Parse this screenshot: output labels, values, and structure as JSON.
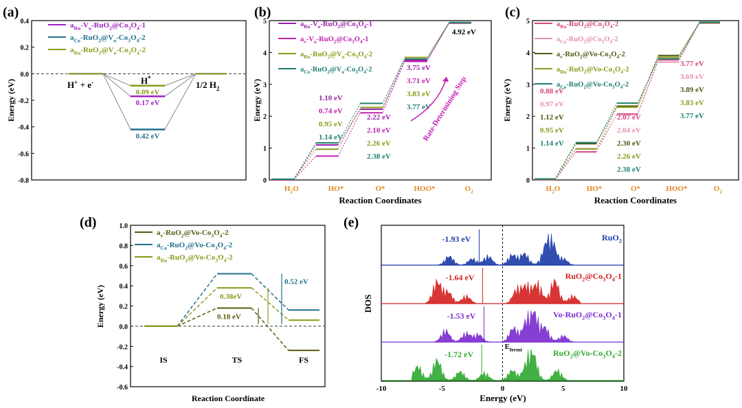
{
  "chart_data": [
    {
      "panel": "(a)",
      "type": "line",
      "ylabel": "Energy (eV)",
      "ylim": [
        -0.8,
        0.4
      ],
      "yticks": [
        0.4,
        0.2,
        0.0,
        -0.2,
        -0.4,
        -0.6,
        -0.8
      ],
      "states": [
        "H⁺ + e⁻",
        "H*",
        "1/2 H₂"
      ],
      "state_labels": {
        "left": "H",
        "left_super": "+",
        "left_rest": " + e",
        "left_super2": "-",
        "mid": "H",
        "mid_super": "*",
        "right": "1/2 H",
        "right_sub": "2"
      },
      "legend_position": "top-left",
      "series": [
        {
          "name": "a_Ru-V_o-RuO2@Co3O4-1",
          "legend": [
            "a",
            "Ru",
            "-V",
            "o",
            "-RuO",
            "2",
            "@Co",
            "3",
            "O",
            "4",
            "-1"
          ],
          "color": "#a020c8",
          "values": [
            0,
            -0.17,
            0
          ],
          "label": "0.17 eV"
        },
        {
          "name": "a_Co-RuO2@V_o-Co3O4-2",
          "legend": [
            "a",
            "Co",
            "-RuO",
            "2",
            "@V",
            "o",
            "-Co",
            "3",
            "O",
            "4",
            "-2"
          ],
          "color": "#1f6f8b",
          "values": [
            0,
            -0.42,
            0
          ],
          "label": "0.42 eV"
        },
        {
          "name": "a_Ru-RuO2@V_o-Co3O4-2",
          "legend": [
            "a",
            "Ru",
            "-RuO",
            "2",
            "@V",
            "o",
            "-Co",
            "3",
            "O",
            "4",
            "-2"
          ],
          "color": "#8a9a1a",
          "values": [
            0,
            -0.09,
            0
          ],
          "label": "0.09 eV"
        }
      ]
    },
    {
      "panel": "(b)",
      "type": "line",
      "xlabel": "Reaction Coordinates",
      "ylabel": "Energy (eV)",
      "ylim": [
        0,
        5
      ],
      "yticks": [
        0,
        1,
        2,
        3,
        4,
        5
      ],
      "categories": [
        "H2O",
        "HO*",
        "O*",
        "HOO*",
        "O2"
      ],
      "category_labels": [
        [
          "H",
          "2",
          "O"
        ],
        [
          "HO*"
        ],
        [
          "O*"
        ],
        [
          "HOO*"
        ],
        [
          "O",
          "2"
        ]
      ],
      "legend_position": "top-left",
      "series": [
        {
          "name": "a_Ru-V_o-RuO2@Co3O4-1",
          "legend": [
            "a",
            "Ru",
            "-V",
            "o",
            "-RuO",
            "2",
            "@Co",
            "3",
            "O",
            "4",
            "-1"
          ],
          "color": "#9b1fa8",
          "values": [
            0,
            1.1,
            2.22,
            3.75,
            4.92
          ]
        },
        {
          "name": "a_v-V_o-RuO2@Co3O4-1",
          "legend": [
            "a",
            "v",
            "-V",
            "o",
            "-RuO",
            "2",
            "@Co",
            "3",
            "O",
            "4",
            "-1"
          ],
          "color": "#c21fb4",
          "values": [
            0,
            0.74,
            2.1,
            3.71,
            4.92
          ]
        },
        {
          "name": "a_Ru-RuO2@V_o-Co3O4-2",
          "legend": [
            "a",
            "Ru",
            "-RuO",
            "2",
            "@V",
            "o",
            "-Co",
            "3",
            "O",
            "4",
            "-2"
          ],
          "color": "#8a9a1a",
          "values": [
            0,
            0.95,
            2.26,
            3.83,
            4.92
          ]
        },
        {
          "name": "a_Co-RuO2@V_o-Co3O4-2",
          "legend": [
            "a",
            "Co",
            "-RuO",
            "2",
            "@V",
            "o",
            "-Co",
            "3",
            "O",
            "4",
            "-2"
          ],
          "color": "#1f7f73",
          "values": [
            0,
            1.14,
            2.38,
            3.77,
            4.92
          ]
        }
      ],
      "annotations": {
        "step1": [
          "1.10 eV",
          "0.74 eV",
          "0.95 eV",
          "1.14 eV"
        ],
        "step2": [
          "2.22 eV",
          "2.10 eV",
          "2.26 eV",
          "2.38 eV"
        ],
        "step3": [
          "3.75 eV",
          "3.71 eV",
          "3.83 eV",
          "3.77 eV"
        ],
        "top": "4.92 eV",
        "rds": "Rate-Determining Step"
      }
    },
    {
      "panel": "(c)",
      "type": "line",
      "xlabel": "Reaction Coordinates",
      "ylabel": "Energy (eV)",
      "ylim": [
        0,
        5
      ],
      "yticks": [
        0,
        1,
        2,
        3,
        4,
        5
      ],
      "categories": [
        "H2O",
        "HO*",
        "O*",
        "HOO*",
        "O2"
      ],
      "category_labels": [
        [
          "H",
          "2",
          "O"
        ],
        [
          "HO*"
        ],
        [
          "O*"
        ],
        [
          "HOO*"
        ],
        [
          "O",
          "2"
        ]
      ],
      "legend_position": "top-left",
      "series": [
        {
          "name": "a_Ru-RuO2@Co3O4-2",
          "legend": [
            "a",
            "Ru",
            "-RuO",
            "2",
            "@Co",
            "3",
            "O",
            "4",
            "-2"
          ],
          "color": "#d4447c",
          "values": [
            0,
            0.88,
            2.07,
            3.77,
            4.92
          ]
        },
        {
          "name": "a_Co-RuO2@Co3O4-2",
          "legend": [
            "a",
            "Co",
            "-RuO",
            "2",
            "@Co",
            "3",
            "O",
            "4",
            "-2"
          ],
          "color": "#e58fb6",
          "values": [
            0,
            0.97,
            2.04,
            3.69,
            4.92
          ]
        },
        {
          "name": "a_v-RuO2@Vo-Co3O4-2",
          "legend": [
            "a",
            "v",
            "-RuO",
            "2",
            "@Vo-Co",
            "3",
            "O",
            "4",
            "-2"
          ],
          "color": "#4b5a12",
          "values": [
            0,
            1.12,
            2.3,
            3.89,
            4.92
          ]
        },
        {
          "name": "a_Ru-RuO2@Vo-Co3O4-2",
          "legend": [
            "a",
            "Ru",
            "-RuO",
            "2",
            "@Vo-Co",
            "3",
            "O",
            "4",
            "-2"
          ],
          "color": "#8a9a1a",
          "values": [
            0,
            0.95,
            2.26,
            3.83,
            4.92
          ]
        },
        {
          "name": "a_Co-RuO2@Vo-Co3O4-2",
          "legend": [
            "a",
            "Co",
            "-RuO",
            "2",
            "@Vo-Co",
            "3",
            "O",
            "4",
            "-2"
          ],
          "color": "#1f7f73",
          "values": [
            0,
            1.14,
            2.38,
            3.77,
            4.92
          ]
        }
      ],
      "annotations": {
        "step1": [
          "0.88 eV",
          "0.97 eV",
          "1.12 eV",
          "0.95 eV",
          "1.14 eV"
        ],
        "step2": [
          "2.07 eV",
          "2.04 eV",
          "2.30 eV",
          "2.26 eV",
          "2.38 eV"
        ],
        "step3": [
          "3.77 eV",
          "3.69 eV",
          "3.89 eV",
          "3.83 eV",
          "3.77 eV"
        ]
      }
    },
    {
      "panel": "(d)",
      "type": "line",
      "xlabel": "Reaction Coordinate",
      "ylabel": "Energy (eV)",
      "ylim": [
        -0.6,
        1.0
      ],
      "yticks": [
        1.0,
        0.8,
        0.6,
        0.4,
        0.2,
        0.0,
        -0.2,
        -0.4,
        -0.6
      ],
      "categories": [
        "IS",
        "TS",
        "FS"
      ],
      "legend_position": "top-left",
      "series": [
        {
          "name": "a_v-RuO2@Vo-Co3O4-2",
          "legend": [
            "a",
            "v",
            "-RuO",
            "2",
            "@Vo-Co",
            "3",
            "O",
            "4",
            "-2"
          ],
          "color": "#5a5a10",
          "values": [
            0,
            0.18,
            -0.24
          ],
          "label": "0.18 eV"
        },
        {
          "name": "a_Co-RuO2@Vo-Co3O4-2",
          "legend": [
            "a",
            "Co",
            "-RuO",
            "2",
            "@Vo-Co",
            "3",
            "O",
            "4",
            "-2"
          ],
          "color": "#1f6f8b",
          "values": [
            0,
            0.52,
            0.16
          ],
          "label": "0.52 eV"
        },
        {
          "name": "a_Ru-RuO2@Vo-Co3O4-2",
          "legend": [
            "a",
            "Ru",
            "-RuO",
            "2",
            "@Vo-Co",
            "3",
            "O",
            "4",
            "-2"
          ],
          "color": "#8a9a1a",
          "values": [
            0,
            0.38,
            0.06
          ],
          "label": "0.38eV"
        }
      ]
    },
    {
      "panel": "(e)",
      "type": "area",
      "xlabel": "Energy (eV)",
      "ylabel": "DOS",
      "xlim": [
        -10,
        10
      ],
      "xticks": [
        -10,
        -5,
        0,
        5,
        10
      ],
      "fermi_label": "E",
      "fermi_sub": "fermi",
      "series": [
        {
          "name": "RuO2",
          "label": [
            "RuO",
            "2"
          ],
          "color": "#1a3aa8",
          "d_band_center": -1.93,
          "center_label": "-1.93 eV",
          "peaks": [
            [
              -4.4,
              0.35
            ],
            [
              -2.5,
              0.25
            ],
            [
              -1.2,
              0.35
            ],
            [
              0.8,
              0.4
            ],
            [
              1.8,
              0.45
            ],
            [
              3.5,
              0.45
            ],
            [
              4.0,
              1.0
            ],
            [
              5.0,
              0.25
            ]
          ]
        },
        {
          "name": "RuO2@Co3O4-1",
          "label": [
            "RuO",
            "2",
            "@Co",
            "3",
            "O",
            "4",
            "-1"
          ],
          "color": "#d42020",
          "d_band_center": -1.64,
          "center_label": "-1.64 eV",
          "peaks": [
            [
              -5.4,
              0.85
            ],
            [
              -4.5,
              0.45
            ],
            [
              -3.0,
              0.3
            ],
            [
              1.2,
              0.55
            ],
            [
              2.0,
              0.65
            ],
            [
              2.9,
              0.75
            ],
            [
              4.3,
              0.9
            ],
            [
              5.8,
              0.3
            ]
          ]
        },
        {
          "name": "Vo-RuO2@Co3O4-1",
          "label": [
            "Vo-RuO",
            "2",
            "@Co",
            "3",
            "O",
            "4",
            "-1"
          ],
          "color": "#7a2ad0",
          "d_band_center": -1.53,
          "center_label": "-1.53 eV",
          "peaks": [
            [
              -4.7,
              0.45
            ],
            [
              -3.0,
              0.35
            ],
            [
              -2.0,
              0.3
            ],
            [
              0.9,
              0.55
            ],
            [
              2.0,
              0.75
            ],
            [
              2.6,
              1.0
            ],
            [
              3.5,
              0.55
            ],
            [
              5.0,
              0.25
            ]
          ]
        },
        {
          "name": "RuO2@Vo-Co3O4-2",
          "label": [
            "RuO",
            "2",
            "@Vo-Co",
            "3",
            "O",
            "4",
            "-2"
          ],
          "color": "#2ea82e",
          "d_band_center": -1.72,
          "center_label": "-1.72 eV",
          "peaks": [
            [
              -7.0,
              0.55
            ],
            [
              -5.4,
              0.8
            ],
            [
              -3.5,
              0.35
            ],
            [
              -1.5,
              0.3
            ],
            [
              0.8,
              0.4
            ],
            [
              2.0,
              0.5
            ],
            [
              2.5,
              0.95
            ],
            [
              4.5,
              0.4
            ]
          ]
        }
      ]
    }
  ],
  "panel_labels": [
    "(a)",
    "(b)",
    "(c)",
    "(d)",
    "(e)"
  ]
}
